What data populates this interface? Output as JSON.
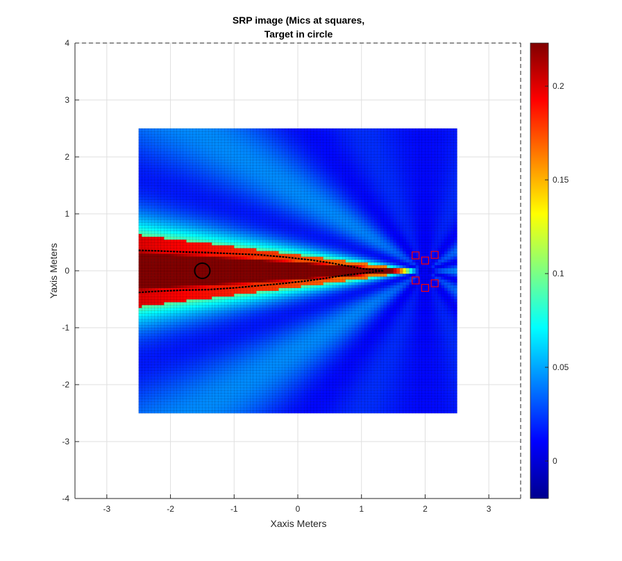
{
  "chart_data": {
    "type": "heatmap",
    "title": [
      "SRP image (Mics at squares,",
      "Target in circle"
    ],
    "xlabel": "Xaxis Meters",
    "ylabel": "Yaxis Meters",
    "xlim": [
      -3.5,
      3.5
    ],
    "ylim": [
      -4,
      4
    ],
    "xticks": [
      -3,
      -2,
      -1,
      0,
      1,
      2,
      3
    ],
    "yticks": [
      -4,
      -3,
      -2,
      -1,
      0,
      1,
      2,
      3,
      4
    ],
    "grid": true,
    "colormap": "jet",
    "grid_extent": {
      "x": [
        -2.5,
        2.5
      ],
      "y": [
        -2.5,
        2.5
      ],
      "step": 0.05
    },
    "colorbar": {
      "range": [
        -0.02,
        0.223
      ],
      "ticks": [
        0,
        0.05,
        0.1,
        0.15,
        0.2
      ],
      "tick_labels": [
        "0",
        "0.05",
        "0.1",
        "0.15",
        "0.2"
      ]
    },
    "target": {
      "x": -1.5,
      "y": 0,
      "radius": 0.12,
      "color": "#000000"
    },
    "microphones": [
      {
        "x": 1.85,
        "y": 0.27
      },
      {
        "x": 2.0,
        "y": 0.18
      },
      {
        "x": 2.15,
        "y": 0.28
      },
      {
        "x": 1.85,
        "y": -0.17
      },
      {
        "x": 2.0,
        "y": -0.3
      },
      {
        "x": 2.15,
        "y": -0.22
      }
    ],
    "mic_color": "#ff0000",
    "peak_contour": {
      "color": "#000000",
      "points": [
        [
          -2.5,
          0.36
        ],
        [
          -2.2,
          0.35
        ],
        [
          -1.8,
          0.33
        ],
        [
          -1.4,
          0.32
        ],
        [
          -1.0,
          0.3
        ],
        [
          -0.6,
          0.28
        ],
        [
          -0.2,
          0.24
        ],
        [
          0.2,
          0.19
        ],
        [
          0.5,
          0.14
        ],
        [
          0.8,
          0.08
        ],
        [
          1.05,
          0.03
        ],
        [
          1.35,
          0.0
        ],
        [
          1.05,
          -0.04
        ],
        [
          0.8,
          -0.07
        ],
        [
          0.5,
          -0.12
        ],
        [
          0.2,
          -0.17
        ],
        [
          -0.2,
          -0.22
        ],
        [
          -0.6,
          -0.26
        ],
        [
          -1.0,
          -0.3
        ],
        [
          -1.4,
          -0.33
        ],
        [
          -1.8,
          -0.34
        ],
        [
          -2.2,
          -0.36
        ],
        [
          -2.5,
          -0.38
        ]
      ]
    }
  }
}
